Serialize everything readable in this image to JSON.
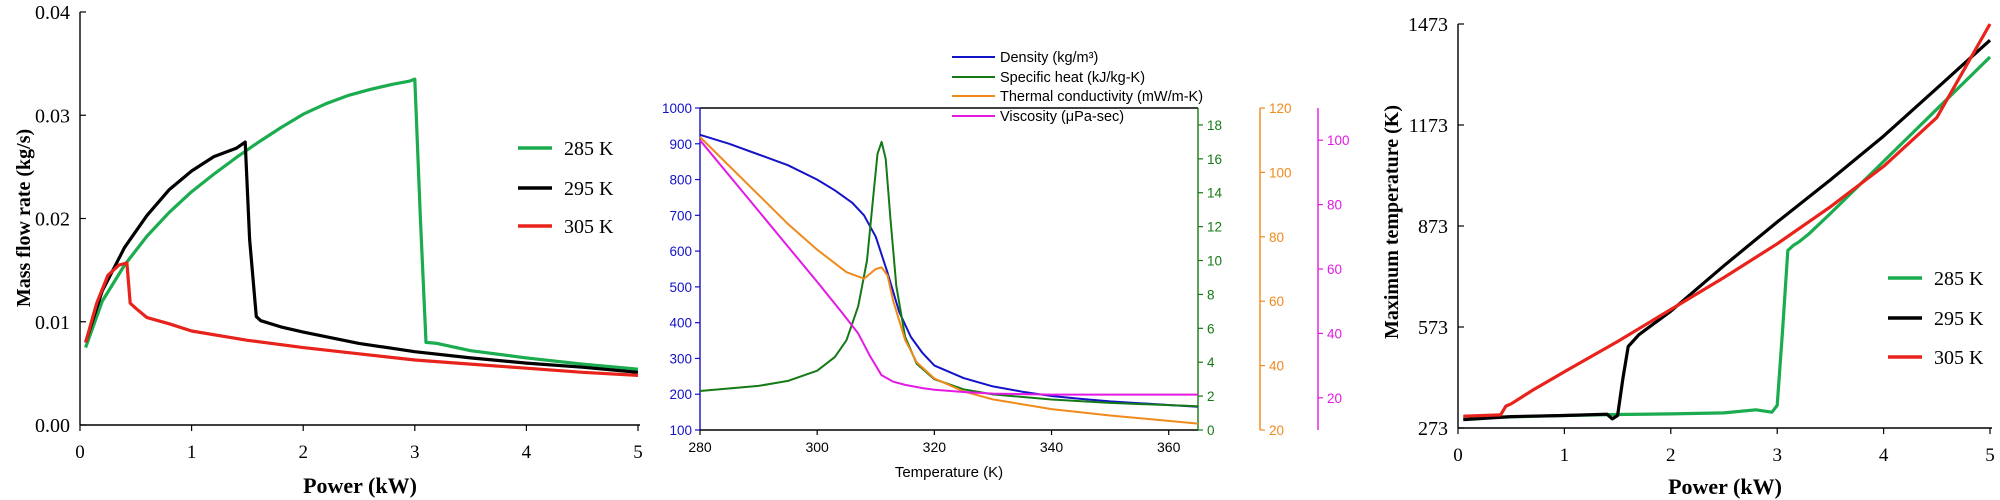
{
  "chart_data": [
    {
      "type": "line",
      "xlabel": "Power (kW)",
      "ylabel": "Mass flow rate (kg/s)",
      "xlim": [
        0,
        5
      ],
      "ylim": [
        0,
        0.04
      ],
      "xticks": [
        "0",
        "1",
        "2",
        "3",
        "4",
        "5"
      ],
      "yticks": [
        "0.00",
        "0.01",
        "0.02",
        "0.03",
        "0.04"
      ],
      "ytick_values": [
        0,
        0.01,
        0.02,
        0.03,
        0.04
      ],
      "grid": false,
      "legend_position": "right",
      "series": [
        {
          "name": "285 K",
          "color": "#1aac4e",
          "x": [
            0.05,
            0.2,
            0.4,
            0.6,
            0.8,
            1.0,
            1.2,
            1.4,
            1.6,
            1.8,
            2.0,
            2.2,
            2.4,
            2.6,
            2.8,
            2.95,
            3.0,
            3.05,
            3.1,
            3.2,
            3.5,
            4.0,
            4.5,
            5.0
          ],
          "y": [
            0.0075,
            0.012,
            0.0155,
            0.0183,
            0.0206,
            0.0226,
            0.0243,
            0.0259,
            0.0274,
            0.0288,
            0.0301,
            0.0311,
            0.0319,
            0.0325,
            0.033,
            0.0333,
            0.0335,
            0.02,
            0.008,
            0.0079,
            0.0072,
            0.0065,
            0.0059,
            0.0054
          ]
        },
        {
          "name": "295 K",
          "color": "#000000",
          "x": [
            0.05,
            0.2,
            0.4,
            0.6,
            0.8,
            1.0,
            1.2,
            1.4,
            1.48,
            1.52,
            1.58,
            1.62,
            1.8,
            2.0,
            2.5,
            3.0,
            3.5,
            4.0,
            4.5,
            5.0
          ],
          "y": [
            0.008,
            0.013,
            0.0172,
            0.0203,
            0.0228,
            0.0246,
            0.026,
            0.0268,
            0.0274,
            0.018,
            0.0105,
            0.0101,
            0.0095,
            0.009,
            0.0079,
            0.0071,
            0.0065,
            0.006,
            0.0056,
            0.0051
          ]
        },
        {
          "name": "305 K",
          "color": "#e8231b",
          "x": [
            0.05,
            0.15,
            0.25,
            0.35,
            0.42,
            0.45,
            0.5,
            0.6,
            0.8,
            1.0,
            1.5,
            2.0,
            2.5,
            3.0,
            3.5,
            4.0,
            4.5,
            5.0
          ],
          "y": [
            0.008,
            0.0118,
            0.0145,
            0.0155,
            0.0157,
            0.0118,
            0.0113,
            0.0104,
            0.0098,
            0.0091,
            0.0082,
            0.0075,
            0.0069,
            0.0063,
            0.0059,
            0.0055,
            0.0051,
            0.0048
          ]
        }
      ]
    },
    {
      "type": "line",
      "xlabel": "Temperature (K)",
      "xlim": [
        280,
        365
      ],
      "xticks": [
        "280",
        "300",
        "320",
        "340",
        "360"
      ],
      "grid": false,
      "legend_position": "top",
      "axes": [
        {
          "side": "left",
          "color": "#1313c8",
          "range": [
            100,
            1000
          ],
          "ticks": [
            100,
            200,
            300,
            400,
            500,
            600,
            700,
            800,
            900,
            1000
          ]
        },
        {
          "side": "right-1",
          "color": "#157a15",
          "range": [
            0,
            19
          ],
          "ticks": [
            0,
            2,
            4,
            6,
            8,
            10,
            12,
            14,
            16,
            18
          ]
        },
        {
          "side": "right-2",
          "color": "#f08a1c",
          "range": [
            20,
            120
          ],
          "ticks": [
            20,
            40,
            60,
            80,
            100,
            120
          ]
        },
        {
          "side": "right-3",
          "color": "#e41ae4",
          "range": [
            10,
            110
          ],
          "ticks": [
            20,
            40,
            60,
            80,
            100
          ]
        }
      ],
      "series": [
        {
          "name": "Density (kg/m³)",
          "color": "#1313c8",
          "axis": 0,
          "x": [
            280,
            285,
            290,
            295,
            300,
            303,
            306,
            308,
            310,
            312,
            314,
            316,
            318,
            320,
            325,
            330,
            335,
            340,
            345,
            350,
            355,
            360,
            365
          ],
          "y": [
            925,
            900,
            870,
            840,
            800,
            770,
            735,
            700,
            640,
            540,
            430,
            360,
            315,
            280,
            245,
            222,
            207,
            195,
            187,
            180,
            175,
            170,
            165
          ]
        },
        {
          "name": "Specific heat (kJ/kg-K)",
          "color": "#157a15",
          "axis": 1,
          "x": [
            280,
            290,
            295,
            300,
            303,
            305,
            307,
            308.5,
            309.5,
            310.3,
            311,
            311.7,
            312.5,
            313.5,
            315,
            317,
            320,
            325,
            330,
            340,
            350,
            365
          ],
          "y": [
            2.3,
            2.6,
            2.9,
            3.5,
            4.3,
            5.3,
            7.3,
            10.0,
            13.5,
            16.3,
            17.0,
            16.0,
            12.5,
            8.5,
            5.5,
            3.9,
            3.0,
            2.4,
            2.1,
            1.8,
            1.6,
            1.4
          ]
        },
        {
          "name": "Thermal conductivity (mW/m-K)",
          "color": "#f08a1c",
          "axis": 2,
          "x": [
            280,
            285,
            290,
            295,
            300,
            305,
            308,
            310,
            311,
            312,
            313,
            315,
            317,
            320,
            325,
            330,
            340,
            350,
            365
          ],
          "y": [
            111,
            102,
            93,
            84,
            76,
            69,
            67,
            70,
            70.5,
            68,
            60,
            48,
            41,
            36,
            32,
            29.5,
            26.5,
            24.5,
            22
          ]
        },
        {
          "name": "Viscosity (μPa-sec)",
          "color": "#e41ae4",
          "axis": 3,
          "x": [
            280,
            285,
            290,
            295,
            300,
            304,
            307,
            309,
            311,
            313,
            315,
            318,
            320,
            325,
            330,
            340,
            350,
            365
          ],
          "y": [
            100,
            89,
            78,
            67,
            56,
            47,
            40,
            33,
            27,
            25,
            24,
            23,
            22.5,
            21.8,
            21.3,
            21,
            21,
            21
          ]
        }
      ]
    },
    {
      "type": "line",
      "xlabel": "Power (kW)",
      "ylabel": "Maximum temperature (K)",
      "xlim": [
        0,
        5
      ],
      "ylim": [
        273,
        1473
      ],
      "xticks": [
        "0",
        "1",
        "2",
        "3",
        "4",
        "5"
      ],
      "yticks": [
        "273",
        "573",
        "873",
        "1173",
        "1473"
      ],
      "ytick_values": [
        273,
        573,
        873,
        1173,
        1473
      ],
      "grid": false,
      "legend_position": "right",
      "series": [
        {
          "name": "285 K",
          "color": "#1aac4e",
          "x": [
            0.05,
            0.5,
            1.0,
            1.5,
            2.0,
            2.5,
            2.8,
            2.95,
            3.0,
            3.05,
            3.1,
            3.15,
            3.2,
            3.3,
            3.5,
            4.0,
            4.5,
            5.0
          ],
          "y": [
            303,
            306,
            310,
            313,
            315,
            318,
            327,
            320,
            340,
            560,
            800,
            815,
            825,
            850,
            910,
            1065,
            1220,
            1375
          ]
        },
        {
          "name": "295 K",
          "color": "#000000",
          "x": [
            0.05,
            0.5,
            1.0,
            1.4,
            1.45,
            1.5,
            1.55,
            1.6,
            1.7,
            2.0,
            2.5,
            3.0,
            3.5,
            4.0,
            4.5,
            5.0
          ],
          "y": [
            298,
            307,
            310,
            314,
            300,
            310,
            420,
            515,
            550,
            620,
            755,
            885,
            1010,
            1140,
            1282,
            1425
          ]
        },
        {
          "name": "305 K",
          "color": "#e8231b",
          "x": [
            0.05,
            0.4,
            0.45,
            0.5,
            0.7,
            1.0,
            1.5,
            2.0,
            2.5,
            3.0,
            3.5,
            4.0,
            4.5,
            5.0
          ],
          "y": [
            308,
            312,
            338,
            345,
            385,
            440,
            530,
            625,
            720,
            820,
            930,
            1050,
            1195,
            1473
          ]
        }
      ]
    }
  ]
}
